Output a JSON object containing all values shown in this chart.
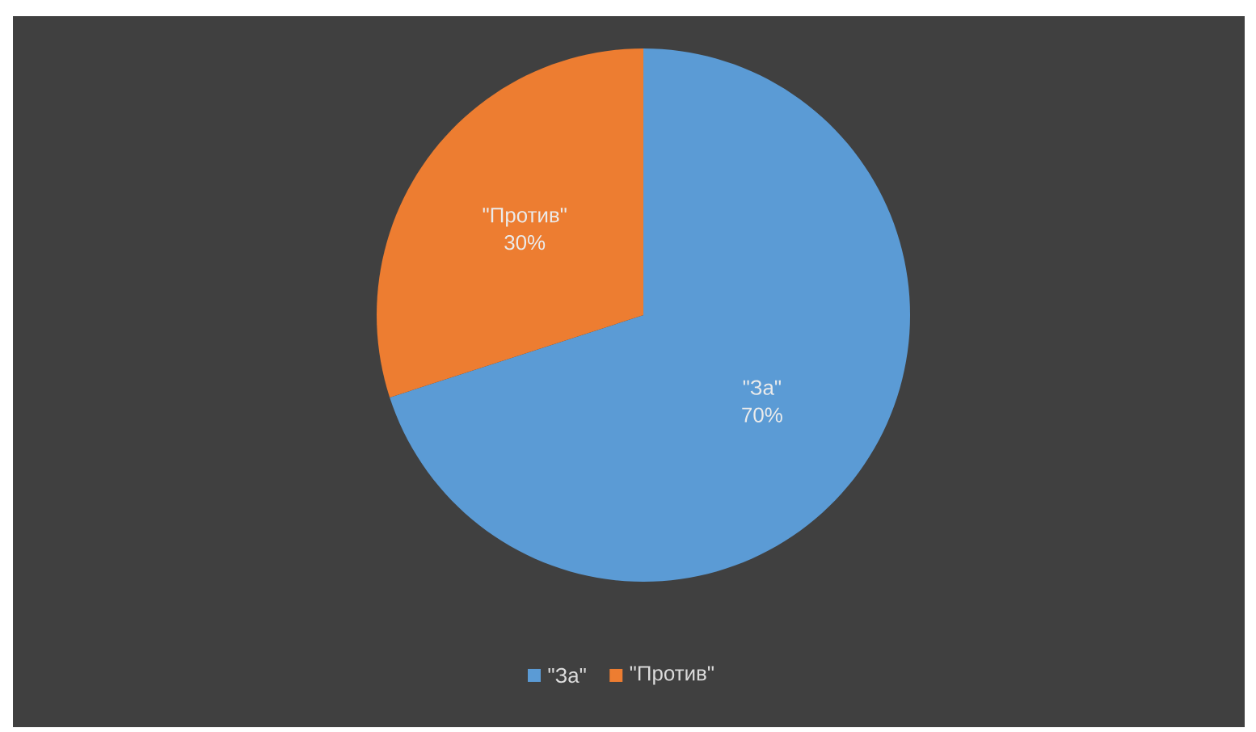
{
  "chart_data": {
    "type": "pie",
    "categories": [
      "\"За\"",
      "\"Против\""
    ],
    "values": [
      70,
      30
    ],
    "value_labels": [
      "70%",
      "30%"
    ],
    "colors": [
      "#5b9bd5",
      "#ed7d31"
    ],
    "legend": "bottom"
  }
}
